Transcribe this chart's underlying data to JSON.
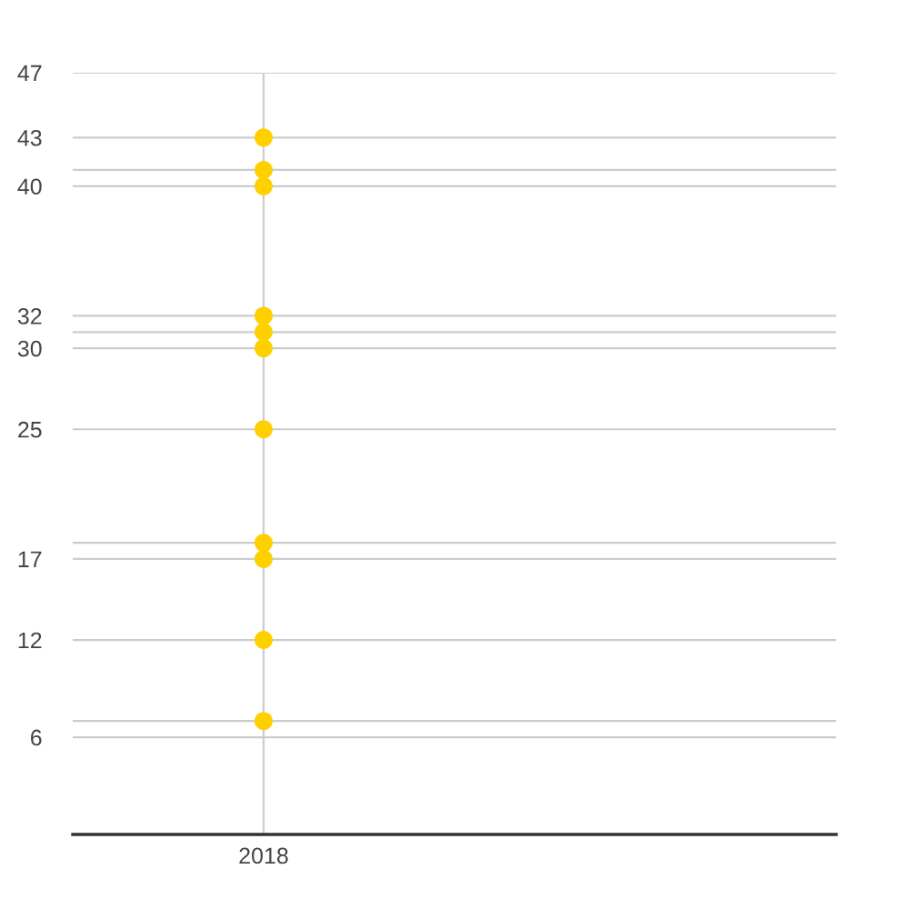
{
  "chart_data": {
    "type": "scatter",
    "categories": [
      "2018"
    ],
    "series": [
      {
        "color": "#ffd000",
        "values": [
          7
        ]
      },
      {
        "color": "#ffd000",
        "values": [
          12
        ]
      },
      {
        "color": "#ffd000",
        "values": [
          17
        ]
      },
      {
        "color": "#ffd000",
        "values": [
          18
        ]
      },
      {
        "color": "#ffd000",
        "values": [
          25
        ]
      },
      {
        "color": "#ffd000",
        "values": [
          30
        ]
      },
      {
        "color": "#ffd000",
        "values": [
          31
        ]
      },
      {
        "color": "#ffd000",
        "values": [
          32
        ]
      },
      {
        "color": "#ffd000",
        "values": [
          40
        ]
      },
      {
        "color": "#ffd000",
        "values": [
          41
        ]
      },
      {
        "color": "#ffd000",
        "values": [
          43
        ]
      }
    ],
    "ylim": [
      0,
      47
    ],
    "yticks": [
      6,
      {
        "value": 7,
        "label": null
      },
      12,
      17,
      {
        "value": 18,
        "label": null
      },
      25,
      30,
      {
        "value": 31,
        "label": null
      },
      32,
      40,
      {
        "value": 41,
        "label": null
      },
      43,
      47
    ],
    "grid": true,
    "marker": "circle"
  }
}
